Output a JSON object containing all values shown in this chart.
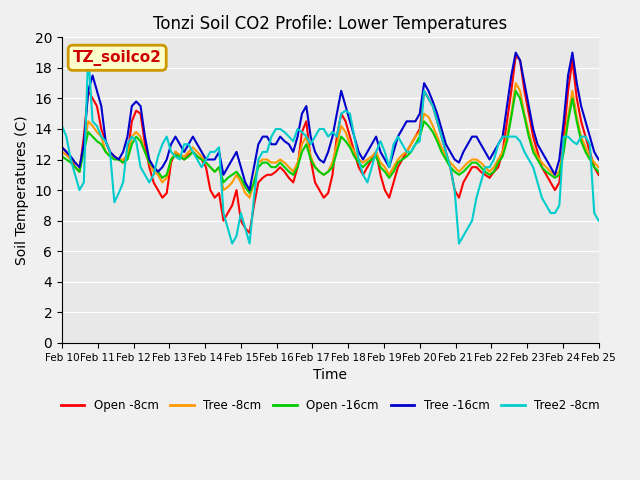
{
  "title": "Tonzi Soil CO2 Profile: Lower Temperatures",
  "xlabel": "Time",
  "ylabel": "Soil Temperatures (C)",
  "ylim": [
    0,
    20
  ],
  "yticks": [
    0,
    2,
    4,
    6,
    8,
    10,
    12,
    14,
    16,
    18,
    20
  ],
  "xtick_labels": [
    "Feb 10",
    "Feb 11",
    "Feb 12",
    "Feb 13",
    "Feb 14",
    "Feb 15",
    "Feb 16",
    "Feb 17",
    "Feb 18",
    "Feb 19",
    "Feb 20",
    "Feb 21",
    "Feb 22",
    "Feb 23",
    "Feb 24",
    "Feb 25"
  ],
  "annotation_text": "TZ_soilco2",
  "annotation_bbox_facecolor": "#ffffcc",
  "annotation_bbox_edgecolor": "#cc9900",
  "annotation_text_color": "#cc0000",
  "bg_color": "#e8e8e8",
  "grid_color": "#ffffff",
  "series": {
    "open_8cm": {
      "label": "Open -8cm",
      "color": "#ff0000",
      "lw": 1.5
    },
    "tree_8cm": {
      "label": "Tree -8cm",
      "color": "#ff9900",
      "lw": 1.5
    },
    "open_16cm": {
      "label": "Open -16cm",
      "color": "#00cc00",
      "lw": 1.5
    },
    "tree_16cm": {
      "label": "Tree -16cm",
      "color": "#0000cc",
      "lw": 1.5
    },
    "tree2_8cm": {
      "label": "Tree2 -8cm",
      "color": "#00cccc",
      "lw": 1.5
    }
  },
  "open_8cm": [
    12.8,
    12.5,
    12.0,
    11.5,
    11.2,
    13.5,
    16.5,
    16.0,
    15.5,
    14.0,
    13.2,
    12.5,
    12.2,
    12.0,
    11.8,
    12.2,
    14.5,
    15.2,
    15.0,
    13.0,
    11.5,
    10.5,
    10.0,
    9.5,
    9.8,
    11.8,
    12.5,
    12.2,
    12.0,
    12.3,
    12.5,
    12.2,
    12.0,
    11.5,
    10.0,
    9.5,
    9.8,
    8.0,
    8.5,
    9.0,
    10.0,
    8.0,
    7.5,
    7.2,
    9.0,
    10.5,
    10.8,
    11.0,
    11.0,
    11.2,
    11.5,
    11.2,
    10.8,
    10.5,
    11.5,
    13.8,
    14.5,
    12.0,
    10.5,
    10.0,
    9.5,
    9.8,
    11.0,
    13.5,
    15.0,
    14.5,
    13.5,
    12.5,
    11.5,
    11.0,
    11.5,
    12.0,
    12.5,
    11.0,
    10.0,
    9.5,
    10.5,
    11.5,
    12.0,
    12.5,
    13.0,
    13.5,
    14.0,
    16.5,
    16.0,
    15.5,
    14.5,
    13.5,
    12.5,
    11.5,
    10.0,
    9.5,
    10.5,
    11.0,
    11.5,
    11.5,
    11.2,
    11.0,
    10.8,
    11.2,
    11.5,
    12.5,
    14.5,
    16.5,
    18.8,
    18.5,
    16.5,
    15.0,
    13.5,
    12.5,
    11.5,
    11.0,
    10.5,
    10.0,
    10.5,
    13.5,
    16.5,
    18.5,
    16.0,
    14.5,
    13.5,
    12.5,
    11.5,
    11.0
  ],
  "tree_8cm": [
    12.5,
    12.3,
    12.0,
    11.8,
    11.5,
    12.8,
    14.5,
    14.2,
    13.8,
    13.5,
    12.5,
    12.3,
    12.2,
    12.0,
    12.0,
    12.3,
    13.5,
    13.8,
    13.5,
    12.5,
    11.8,
    11.2,
    11.0,
    10.5,
    10.8,
    12.0,
    12.5,
    12.3,
    12.2,
    12.5,
    12.8,
    12.5,
    12.2,
    11.8,
    11.5,
    11.2,
    11.5,
    10.0,
    10.2,
    10.5,
    11.0,
    10.5,
    9.8,
    9.5,
    10.5,
    11.8,
    12.0,
    12.0,
    11.8,
    11.8,
    12.0,
    11.8,
    11.5,
    11.2,
    11.8,
    13.0,
    13.5,
    12.2,
    11.5,
    11.2,
    11.0,
    11.2,
    11.8,
    13.0,
    14.2,
    13.8,
    13.0,
    12.5,
    12.0,
    11.8,
    12.0,
    12.2,
    12.5,
    11.8,
    11.5,
    11.0,
    11.5,
    12.0,
    12.3,
    12.5,
    13.0,
    13.5,
    13.8,
    15.0,
    14.8,
    14.2,
    13.5,
    12.8,
    12.2,
    11.8,
    11.5,
    11.2,
    11.5,
    11.8,
    12.0,
    12.0,
    11.8,
    11.5,
    11.2,
    11.5,
    12.0,
    12.5,
    13.5,
    15.0,
    17.0,
    16.5,
    15.0,
    13.8,
    12.8,
    12.2,
    11.8,
    11.5,
    11.2,
    11.0,
    11.2,
    12.8,
    14.8,
    16.5,
    14.8,
    13.5,
    12.8,
    12.2,
    11.8,
    11.5
  ],
  "open_16cm": [
    12.2,
    12.0,
    11.8,
    11.5,
    11.2,
    12.5,
    13.8,
    13.5,
    13.2,
    13.0,
    12.5,
    12.2,
    12.0,
    12.0,
    11.8,
    12.0,
    13.0,
    13.5,
    13.2,
    12.5,
    11.8,
    11.5,
    11.2,
    10.8,
    11.0,
    12.0,
    12.3,
    12.2,
    12.0,
    12.2,
    12.5,
    12.2,
    12.0,
    11.8,
    11.5,
    11.2,
    11.5,
    10.5,
    10.8,
    11.0,
    11.2,
    10.8,
    10.2,
    9.8,
    10.5,
    11.5,
    11.8,
    11.8,
    11.5,
    11.5,
    11.8,
    11.5,
    11.2,
    11.0,
    11.5,
    12.5,
    13.0,
    12.0,
    11.5,
    11.2,
    11.0,
    11.2,
    11.5,
    12.5,
    13.5,
    13.2,
    12.8,
    12.2,
    11.8,
    11.5,
    11.8,
    12.0,
    12.2,
    11.5,
    11.2,
    10.8,
    11.2,
    11.8,
    12.0,
    12.2,
    12.5,
    13.0,
    13.5,
    14.5,
    14.2,
    13.8,
    13.2,
    12.5,
    12.0,
    11.5,
    11.2,
    11.0,
    11.2,
    11.5,
    11.8,
    11.8,
    11.5,
    11.2,
    11.0,
    11.2,
    11.8,
    12.2,
    13.2,
    14.8,
    16.5,
    16.0,
    14.8,
    13.5,
    12.5,
    12.0,
    11.5,
    11.2,
    11.0,
    10.8,
    11.0,
    12.5,
    14.5,
    16.0,
    14.5,
    13.2,
    12.5,
    12.0,
    11.5,
    11.2
  ],
  "tree_16cm": [
    12.8,
    12.5,
    12.2,
    11.8,
    11.5,
    13.0,
    16.5,
    17.5,
    16.5,
    15.5,
    13.2,
    12.5,
    12.2,
    12.0,
    12.5,
    13.5,
    15.5,
    15.8,
    15.5,
    13.5,
    12.0,
    11.5,
    11.2,
    11.5,
    12.0,
    13.0,
    13.5,
    13.0,
    12.5,
    13.0,
    13.5,
    13.0,
    12.5,
    12.0,
    12.0,
    12.0,
    12.5,
    11.0,
    11.5,
    12.0,
    12.5,
    11.5,
    10.5,
    10.0,
    11.5,
    13.0,
    13.5,
    13.5,
    13.0,
    13.0,
    13.5,
    13.2,
    13.0,
    12.5,
    13.5,
    15.0,
    15.5,
    13.5,
    12.5,
    12.0,
    11.8,
    12.5,
    13.5,
    15.0,
    16.5,
    15.5,
    14.5,
    13.5,
    12.5,
    12.0,
    12.5,
    13.0,
    13.5,
    12.5,
    12.0,
    11.5,
    12.5,
    13.5,
    14.0,
    14.5,
    14.5,
    14.5,
    15.0,
    17.0,
    16.5,
    15.8,
    15.0,
    14.0,
    13.0,
    12.5,
    12.0,
    11.8,
    12.5,
    13.0,
    13.5,
    13.5,
    13.0,
    12.5,
    12.0,
    12.5,
    13.0,
    13.5,
    15.5,
    17.5,
    19.0,
    18.5,
    17.0,
    15.5,
    14.0,
    13.0,
    12.5,
    12.0,
    11.5,
    11.0,
    12.0,
    14.5,
    17.5,
    19.0,
    17.0,
    15.5,
    14.5,
    13.5,
    12.5,
    12.0
  ],
  "tree2_8cm": [
    14.2,
    13.5,
    12.0,
    11.0,
    10.0,
    10.5,
    19.0,
    14.5,
    14.2,
    13.5,
    13.2,
    12.5,
    9.2,
    9.8,
    10.5,
    13.0,
    13.5,
    13.2,
    11.5,
    11.0,
    10.5,
    11.0,
    12.2,
    13.0,
    13.5,
    12.5,
    12.2,
    12.0,
    13.0,
    13.0,
    12.5,
    12.0,
    11.5,
    12.0,
    12.5,
    12.5,
    12.8,
    8.5,
    7.5,
    6.5,
    7.0,
    8.5,
    7.5,
    6.5,
    9.5,
    12.0,
    12.5,
    12.5,
    13.5,
    14.0,
    14.0,
    13.8,
    13.5,
    13.2,
    14.0,
    13.8,
    13.5,
    13.0,
    13.5,
    14.0,
    14.0,
    13.5,
    13.8,
    13.5,
    15.0,
    15.2,
    15.0,
    13.5,
    12.0,
    11.0,
    10.5,
    11.5,
    12.5,
    13.2,
    12.5,
    11.5,
    13.0,
    13.5,
    13.0,
    12.5,
    12.5,
    13.0,
    13.2,
    16.5,
    16.0,
    15.5,
    14.5,
    13.5,
    12.5,
    11.5,
    10.0,
    6.5,
    7.0,
    7.5,
    8.0,
    9.5,
    10.5,
    11.5,
    11.5,
    12.0,
    13.0,
    13.5,
    13.5,
    13.5,
    13.5,
    13.2,
    12.5,
    12.0,
    11.5,
    10.5,
    9.5,
    9.0,
    8.5,
    8.5,
    9.0,
    13.5,
    13.5,
    13.2,
    13.0,
    13.5,
    13.5,
    13.0,
    8.5,
    8.0
  ]
}
